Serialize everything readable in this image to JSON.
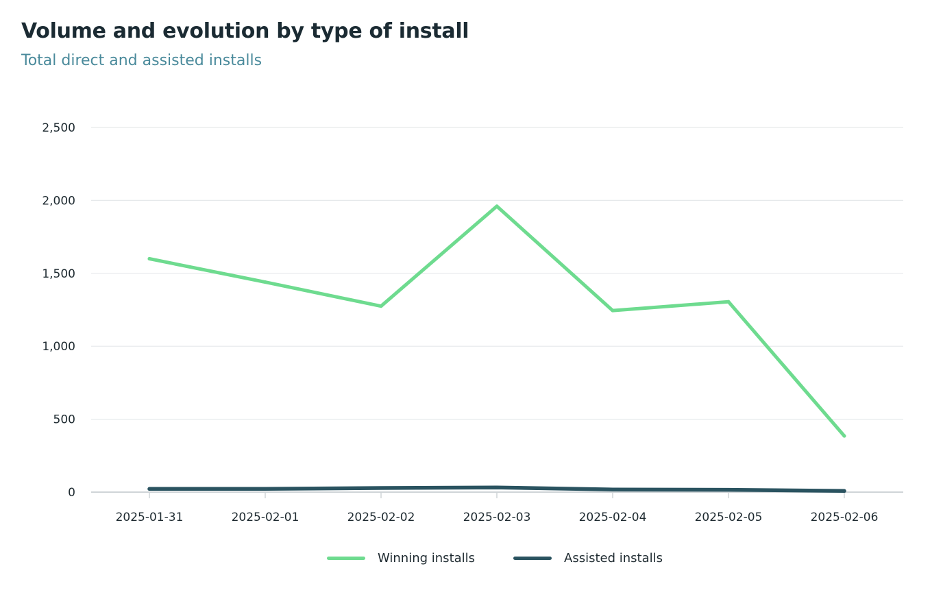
{
  "title": "Volume and evolution by type of install",
  "subtitle": "Total direct and assisted installs",
  "chart_data": {
    "type": "line",
    "x": [
      "2025-01-31",
      "2025-02-01",
      "2025-02-02",
      "2025-02-03",
      "2025-02-04",
      "2025-02-05",
      "2025-02-06"
    ],
    "series": [
      {
        "name": "Winning installs",
        "color": "#6edb8f",
        "values": [
          1600,
          1440,
          1275,
          1960,
          1245,
          1305,
          385
        ]
      },
      {
        "name": "Assisted installs",
        "color": "#2a5360",
        "values": [
          22,
          22,
          28,
          32,
          18,
          16,
          8
        ]
      }
    ],
    "ylim": [
      0,
      2500
    ],
    "yticks": [
      0,
      500,
      1000,
      1500,
      2000,
      2500
    ],
    "ytick_labels": [
      "0",
      "500",
      "1,000",
      "1,500",
      "2,000",
      "2,500"
    ],
    "grid": true,
    "legend_position": "bottom-center"
  }
}
